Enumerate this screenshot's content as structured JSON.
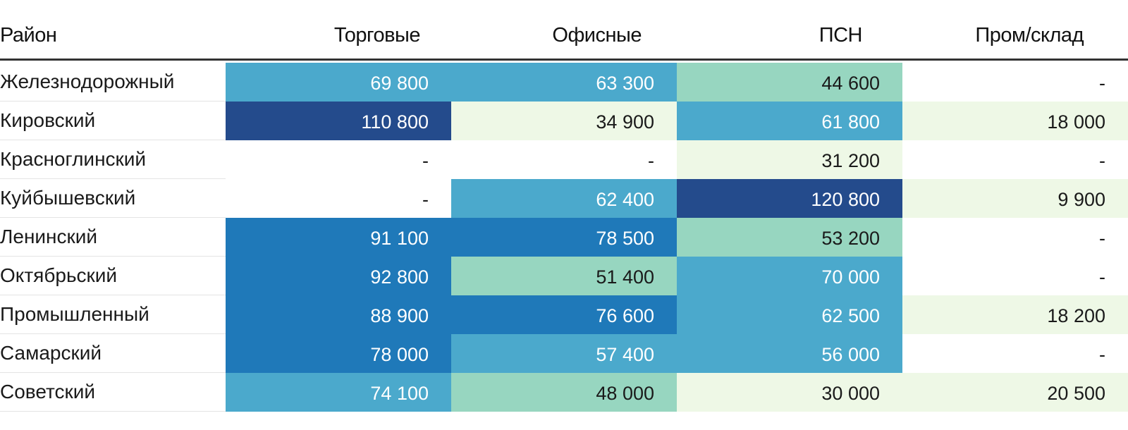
{
  "chart_data": {
    "type": "table",
    "title": "",
    "columns": [
      "Район",
      "Торговые",
      "Офисные",
      "ПСН",
      "Пром/склад"
    ],
    "rows": [
      {
        "district": "Железнодорожный",
        "values": [
          "69 800",
          "63 300",
          "44 600",
          "-"
        ],
        "numeric": [
          69800,
          63300,
          44600,
          null
        ]
      },
      {
        "district": "Кировский",
        "values": [
          "110 800",
          "34 900",
          "61 800",
          "18 000"
        ],
        "numeric": [
          110800,
          34900,
          61800,
          18000
        ]
      },
      {
        "district": "Красноглинский",
        "values": [
          "-",
          "-",
          "31 200",
          "-"
        ],
        "numeric": [
          null,
          null,
          31200,
          null
        ]
      },
      {
        "district": "Куйбышевский",
        "values": [
          "-",
          "62 400",
          "120 800",
          "9 900"
        ],
        "numeric": [
          null,
          62400,
          120800,
          9900
        ]
      },
      {
        "district": "Ленинский",
        "values": [
          "91 100",
          "78 500",
          "53 200",
          "-"
        ],
        "numeric": [
          91100,
          78500,
          53200,
          null
        ]
      },
      {
        "district": "Октябрьский",
        "values": [
          "92 800",
          "51 400",
          "70 000",
          "-"
        ],
        "numeric": [
          92800,
          51400,
          70000,
          null
        ]
      },
      {
        "district": "Промышленный",
        "values": [
          "88 900",
          "76 600",
          "62 500",
          "18 200"
        ],
        "numeric": [
          88900,
          76600,
          62500,
          18200
        ]
      },
      {
        "district": "Самарский",
        "values": [
          "78 000",
          "57 400",
          "56 000",
          "-"
        ],
        "numeric": [
          78000,
          57400,
          56000,
          null
        ]
      },
      {
        "district": "Советский",
        "values": [
          "74 100",
          "48 000",
          "30 000",
          "20 500"
        ],
        "numeric": [
          74100,
          48000,
          30000,
          20500
        ]
      }
    ],
    "color_scale": [
      {
        "min": 0,
        "max": 29999,
        "color": "#eef8e6",
        "text_color": "#1a1a1a"
      },
      {
        "min": 30000,
        "max": 39999,
        "color": "#eef8e6",
        "text_color": "#1a1a1a"
      },
      {
        "min": 40000,
        "max": 55999,
        "color": "#97d6c0",
        "text_color": "#1a1a1a"
      },
      {
        "min": 56000,
        "max": 74999,
        "color": "#4ba9cc",
        "text_color": "#ffffff"
      },
      {
        "min": 75000,
        "max": 99999,
        "color": "#1f79b9",
        "text_color": "#ffffff"
      },
      {
        "min": 100000,
        "max": 1000000,
        "color": "#244b8c",
        "text_color": "#ffffff"
      }
    ],
    "empty_color": "#ffffff",
    "empty_text_color": "#1a1a1a"
  }
}
